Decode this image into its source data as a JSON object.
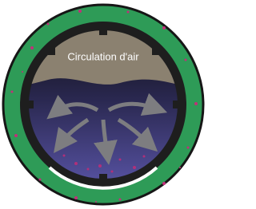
{
  "label": "Circulation d'air"
}
